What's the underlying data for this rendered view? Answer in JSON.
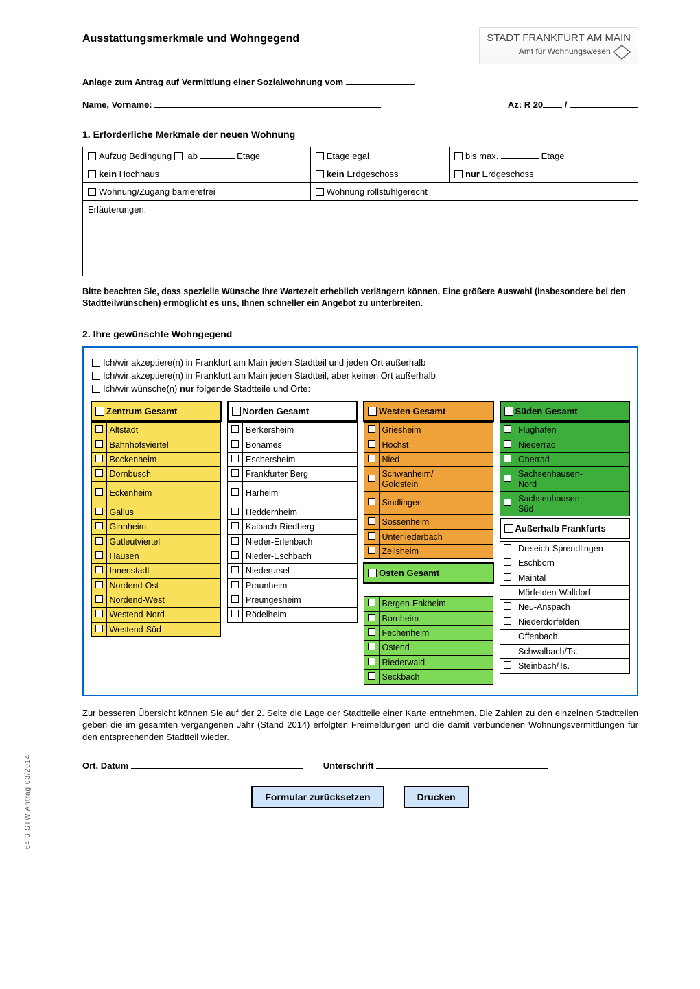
{
  "sidecode": "64.3 STW Antrag 03/2014",
  "header": {
    "title": "Ausstattungsmerkmale und Wohngegend",
    "logo_line1": "STADT   FRANKFURT AM MAIN",
    "logo_line2": "Amt für Wohnungswesen"
  },
  "subline_prefix": "Anlage zum Antrag auf Vermittlung einer Sozialwohnung vom ",
  "row2": {
    "name_label": "Name, Vorname: ",
    "az_prefix": "Az:  R 20",
    "az_sep": " / "
  },
  "section1": {
    "heading": "1.   Erforderliche Merkmale der neuen Wohnung",
    "cells": {
      "aufzug_pre": "Aufzug Bedingung ",
      "aufzug_ab": " ab ",
      "aufzug_suf": " Etage",
      "etage_egal": "Etage egal",
      "bismax_pre": "bis max. ",
      "bismax_suf": " Etage",
      "kein_hochhaus_b": "kein",
      "kein_hochhaus_r": " Hochhaus",
      "kein_eg_b": "kein",
      "kein_eg_r": " Erdgeschoss",
      "nur_eg_b": "nur",
      "nur_eg_r": " Erdgeschoss",
      "barriere": "Wohnung/Zugang barrierefrei",
      "rollstuhl": "Wohnung rollstuhlgerecht",
      "erl": "Erläuterungen:"
    },
    "note": "Bitte beachten Sie, dass spezielle Wünsche Ihre Wartezeit erheblich verlängern können. Eine größere Auswahl (insbesondere bei den Stadtteilwünschen) ermöglicht es uns, Ihnen schneller ein Angebot zu unterbreiten."
  },
  "section2": {
    "heading": "2.   Ihre gewünschte Wohngegend",
    "opt1": "Ich/wir akzeptiere(n) in Frankfurt am Main jeden Stadtteil und jeden Ort außerhalb",
    "opt2": "Ich/wir akzeptiere(n) in Frankfurt am Main jeden Stadtteil, aber keinen Ort außerhalb",
    "opt3_pre": "Ich/wir wünsche(n) ",
    "opt3_b": "nur",
    "opt3_suf": " folgende Stadtteile und Orte:"
  },
  "colors": {
    "yellow": "#f8e05a",
    "white": "#ffffff",
    "orange": "#f0a23a",
    "green_light": "#7ed957",
    "green_dark": "#3cae3c",
    "blue_border": "#0066cc"
  },
  "columns": [
    {
      "header": "Zentrum Gesamt",
      "header_color": "yellow",
      "items": [
        {
          "label": "Altstadt",
          "c": "yellow"
        },
        {
          "label": "Bahnhofsviertel",
          "c": "yellow"
        },
        {
          "label": "Bockenheim",
          "c": "yellow"
        },
        {
          "label": "Dornbusch",
          "c": "yellow"
        },
        {
          "label": "Eckenheim",
          "c": "yellow",
          "tall": true
        },
        {
          "label": "Gallus",
          "c": "yellow"
        },
        {
          "label": "Ginnheim",
          "c": "yellow"
        },
        {
          "label": "Gutleutviertel",
          "c": "yellow"
        },
        {
          "label": "Hausen",
          "c": "yellow"
        },
        {
          "label": "Innenstadt",
          "c": "yellow"
        },
        {
          "label": "Nordend-Ost",
          "c": "yellow"
        },
        {
          "label": "Nordend-West",
          "c": "yellow"
        },
        {
          "label": "Westend-Nord",
          "c": "yellow"
        },
        {
          "label": "Westend-Süd",
          "c": "yellow"
        }
      ]
    },
    {
      "header": "Norden Gesamt",
      "header_color": "white",
      "items": [
        {
          "label": "Berkersheim",
          "c": "white"
        },
        {
          "label": "Bonames",
          "c": "white"
        },
        {
          "label": "Eschersheim",
          "c": "white"
        },
        {
          "label": "Frankfurter Berg",
          "c": "white"
        },
        {
          "label": "Harheim",
          "c": "white",
          "tall": true
        },
        {
          "label": "Heddernheim",
          "c": "white"
        },
        {
          "label": "Kalbach-Riedberg",
          "c": "white"
        },
        {
          "label": "Nieder-Erlenbach",
          "c": "white"
        },
        {
          "label": "Nieder-Eschbach",
          "c": "white"
        },
        {
          "label": "Niederursel",
          "c": "white"
        },
        {
          "label": "Praunheim",
          "c": "white"
        },
        {
          "label": "Preungesheim",
          "c": "white"
        },
        {
          "label": "Rödelheim",
          "c": "white"
        }
      ]
    },
    {
      "header": "Westen Gesamt",
      "header_color": "orange",
      "items": [
        {
          "label": "Griesheim",
          "c": "orange"
        },
        {
          "label": "Höchst",
          "c": "orange"
        },
        {
          "label": "Nied",
          "c": "orange"
        },
        {
          "label": "Schwanheim/\nGoldstein",
          "c": "orange",
          "tall": true
        },
        {
          "label": "Sindlingen",
          "c": "orange",
          "tall": true
        },
        {
          "label": "Sossenheim",
          "c": "orange"
        },
        {
          "label": "Unterliederbach",
          "c": "orange"
        },
        {
          "label": "Zeilsheim",
          "c": "orange"
        }
      ],
      "header2": "Osten Gesamt",
      "header2_color": "green_light",
      "items2": [
        {
          "label": "Bergen-Enkheim",
          "c": "green_light"
        },
        {
          "label": "Bornheim",
          "c": "green_light"
        },
        {
          "label": "Fechenheim",
          "c": "green_light"
        },
        {
          "label": "Ostend",
          "c": "green_light"
        },
        {
          "label": "Riederwald",
          "c": "green_light"
        },
        {
          "label": "Seckbach",
          "c": "green_light"
        }
      ]
    },
    {
      "header": "Süden Gesamt",
      "header_color": "green_dark",
      "items": [
        {
          "label": "Flughafen",
          "c": "green_dark"
        },
        {
          "label": "Niederrad",
          "c": "green_dark"
        },
        {
          "label": "Oberrad",
          "c": "green_dark"
        },
        {
          "label": "Sachsenhausen-\nNord",
          "c": "green_dark",
          "tall": true
        },
        {
          "label": "Sachsenhausen-\nSüd",
          "c": "green_dark",
          "tall": true
        }
      ],
      "header2": "Außerhalb Frankfurts",
      "header2_color": "white",
      "items2": [
        {
          "label": "Dreieich-Sprendlingen",
          "c": "white"
        },
        {
          "label": "Eschborn",
          "c": "white"
        },
        {
          "label": "Maintal",
          "c": "white"
        },
        {
          "label": "Mörfelden-Walldorf",
          "c": "white"
        },
        {
          "label": "Neu-Anspach",
          "c": "white"
        },
        {
          "label": "Niederdorfelden",
          "c": "white"
        },
        {
          "label": "Offenbach",
          "c": "white"
        },
        {
          "label": "Schwalbach/Ts.",
          "c": "white"
        },
        {
          "label": "Steinbach/Ts.",
          "c": "white"
        }
      ]
    }
  ],
  "footer_note": "Zur besseren Übersicht können Sie auf der 2. Seite die Lage der Stadtteile einer Karte entnehmen. Die Zahlen zu den einzelnen Stadtteilen geben die im gesamten vergangenen Jahr (Stand 2014) erfolgten Freimeldungen und die damit verbundenen Wohnungsvermittlungen für den entsprechenden Stadtteil wieder.",
  "sig": {
    "ort": "Ort, Datum ",
    "unter": "Unterschrift "
  },
  "buttons": {
    "reset": "Formular zurücksetzen",
    "print": "Drucken"
  }
}
